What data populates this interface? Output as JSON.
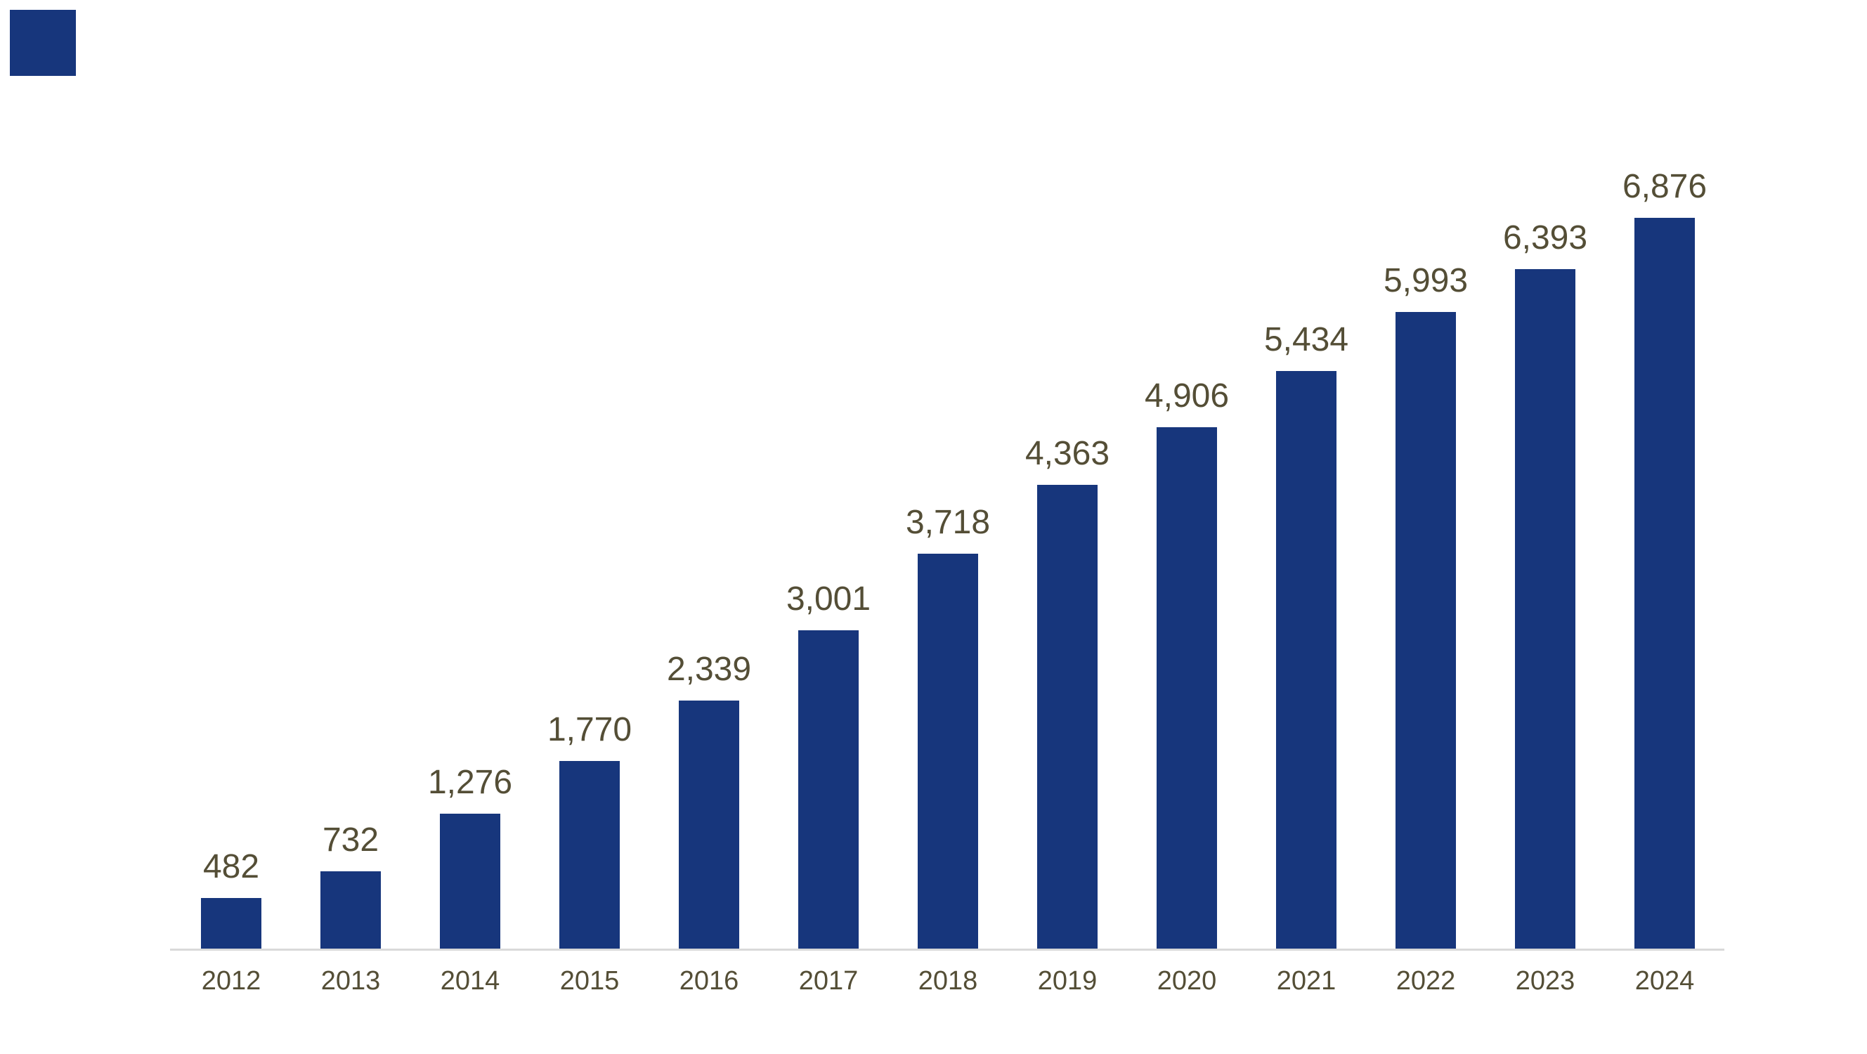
{
  "window": {
    "background_color": "#FFFFFF"
  },
  "brand_mark": {
    "color": "#17367C"
  },
  "chart_data": {
    "type": "bar",
    "orientation": "vertical",
    "title": "",
    "subtitle": "",
    "xlabel": "",
    "ylabel": "",
    "categories": [
      "2012",
      "2013",
      "2014",
      "2015",
      "2016",
      "2017",
      "2018",
      "2019",
      "2020",
      "2021",
      "2022",
      "2023",
      "2024"
    ],
    "values": [
      482,
      732,
      1276,
      1770,
      2339,
      3001,
      3718,
      4363,
      4906,
      5434,
      5993,
      6393,
      6876
    ],
    "value_labels": [
      "482",
      "732",
      "1,276",
      "1,770",
      "2,339",
      "3,001",
      "3,718",
      "4,363",
      "4,906",
      "5,434",
      "5,993",
      "6,393",
      "6,876"
    ],
    "ylim": [
      0,
      6876
    ],
    "grid": "off",
    "legend": "none",
    "y_axis_ticks": "none",
    "data_labels_position": "outside-end",
    "bar_color": "#17367C",
    "data_label_color": "#544E36",
    "tick_label_color": "#544E36",
    "axis_line_color": "#D9D9D9"
  }
}
